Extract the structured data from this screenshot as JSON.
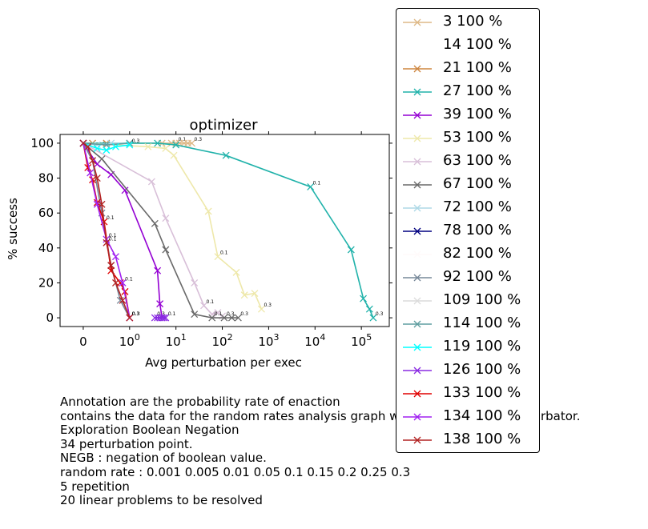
{
  "chart_data": {
    "type": "line",
    "title": "optimizer",
    "xlabel": "Avg perturbation per exec",
    "ylabel": "% success",
    "xscale": "symlog",
    "xlim": [
      -0.5,
      400000
    ],
    "ylim": [
      -5,
      105
    ],
    "x_tick_labels": [
      "0",
      "10^0",
      "10^1",
      "10^2",
      "10^3",
      "10^4",
      "10^5"
    ],
    "x_ticks": [
      0,
      1,
      10,
      100,
      1000,
      10000,
      100000
    ],
    "y_ticks": [
      0,
      20,
      40,
      60,
      80,
      100
    ],
    "y_tick_labels": [
      "0",
      "20",
      "40",
      "60",
      "80",
      "100"
    ],
    "marker": "x",
    "legend_position": "outside-right",
    "series": [
      {
        "name": "3 100 %",
        "color": "#deb887",
        "x": [
          0,
          5,
          8,
          10,
          12,
          15,
          18,
          22
        ],
        "y": [
          100,
          100,
          100,
          100,
          100,
          100,
          100,
          100
        ],
        "labels": [
          "",
          "",
          "",
          "0.1",
          "",
          "",
          "",
          "0.3"
        ]
      },
      {
        "name": "14 100 %",
        "color": "#ffffff",
        "x": [],
        "y": [],
        "labels": []
      },
      {
        "name": "21 100 %",
        "color": "#cd853f",
        "x": [
          0,
          0.2,
          0.5,
          1
        ],
        "y": [
          100,
          100,
          100,
          100
        ],
        "labels": [
          "",
          "",
          "",
          ""
        ]
      },
      {
        "name": "27 100 %",
        "color": "#20b2aa",
        "x": [
          0,
          4,
          10,
          120,
          8000,
          60000,
          110000,
          150000,
          180000
        ],
        "y": [
          100,
          100,
          99,
          93,
          75,
          39,
          11,
          5,
          0
        ],
        "labels": [
          "",
          "",
          "",
          "",
          "0.1",
          "",
          "",
          "",
          "0.3"
        ]
      },
      {
        "name": "39 100 %",
        "color": "#9400d3",
        "x": [
          0,
          0.3,
          0.6,
          0.9,
          4,
          4.5,
          5
        ],
        "y": [
          100,
          88,
          82,
          73,
          27,
          8,
          0
        ],
        "labels": [
          "",
          "",
          "",
          "",
          "",
          "",
          ""
        ]
      },
      {
        "name": "53 100 %",
        "color": "#eee8aa",
        "x": [
          0,
          2.5,
          6,
          9,
          50,
          80,
          200,
          300,
          500,
          700
        ],
        "y": [
          100,
          98,
          97,
          93,
          61,
          35,
          26,
          13,
          14,
          5
        ],
        "labels": [
          "",
          "",
          "",
          "",
          "",
          "0.1",
          "",
          "",
          "",
          "0.3"
        ]
      },
      {
        "name": "63 100 %",
        "color": "#d8bfd8",
        "x": [
          0,
          3,
          6,
          25,
          40,
          60,
          80,
          100
        ],
        "y": [
          100,
          78,
          57,
          20,
          7,
          2,
          3,
          1
        ],
        "labels": [
          "",
          "",
          "",
          "",
          "0.1",
          "",
          "",
          ""
        ]
      },
      {
        "name": "67 100 %",
        "color": "#696969",
        "x": [
          0,
          0.4,
          3.5,
          6,
          25,
          60,
          110,
          160,
          220
        ],
        "y": [
          100,
          91,
          54,
          39,
          2,
          0,
          0,
          0,
          0
        ],
        "labels": [
          "",
          "",
          "",
          "",
          "",
          "0.1",
          "0.3",
          "",
          "0.3"
        ]
      },
      {
        "name": "72 100 %",
        "color": "#add8e6",
        "x": [
          0,
          0.3,
          0.6,
          1
        ],
        "y": [
          100,
          99,
          100,
          100
        ],
        "labels": [
          "",
          "",
          "",
          ""
        ]
      },
      {
        "name": "78 100 %",
        "color": "#000080",
        "x": [],
        "y": [],
        "labels": []
      },
      {
        "name": "82 100 %",
        "color": "#fffafa",
        "x": [],
        "y": [],
        "labels": []
      },
      {
        "name": "92 100 %",
        "color": "#778899",
        "x": [
          0,
          0.2,
          0.4,
          0.6,
          0.8,
          1
        ],
        "y": [
          100,
          90,
          60,
          30,
          10,
          0
        ],
        "labels": [
          "",
          "",
          "",
          "",
          "",
          "0.3"
        ]
      },
      {
        "name": "109 100 %",
        "color": "#dcdcdc",
        "x": [],
        "y": [],
        "labels": []
      },
      {
        "name": "114 100 %",
        "color": "#5f9ea0",
        "x": [
          0,
          0.5,
          1
        ],
        "y": [
          100,
          99,
          100
        ],
        "labels": [
          "",
          "",
          ""
        ]
      },
      {
        "name": "119 100 %",
        "color": "#00ffff",
        "x": [
          0,
          0.3,
          0.5,
          0.7,
          1
        ],
        "y": [
          100,
          97,
          96,
          98,
          99
        ],
        "labels": [
          "",
          "",
          "",
          "",
          "0.3"
        ]
      },
      {
        "name": "126 100 %",
        "color": "#8a2be2",
        "x": [
          3.5,
          4,
          4.5,
          5,
          5.5,
          6
        ],
        "y": [
          0,
          0,
          0,
          0,
          0,
          0
        ],
        "labels": [
          "0.3",
          "",
          "",
          "",
          "",
          "0.1"
        ]
      },
      {
        "name": "133 100 %",
        "color": "#e00000",
        "x": [
          0,
          0.1,
          0.2,
          0.3,
          0.45,
          0.6,
          0.8,
          0.9,
          1
        ],
        "y": [
          100,
          86,
          79,
          66,
          55,
          27,
          20,
          15,
          0
        ],
        "labels": [
          "",
          "",
          "",
          "",
          "0.1",
          "",
          "",
          "",
          "0.3"
        ]
      },
      {
        "name": "134 100 %",
        "color": "#a020f0",
        "x": [
          0,
          0.15,
          0.3,
          0.5,
          0.7,
          0.85,
          1
        ],
        "y": [
          100,
          83,
          65,
          45,
          35,
          20,
          0
        ],
        "labels": [
          "",
          "",
          "",
          "0.1",
          "",
          "0.1",
          "0.3"
        ]
      },
      {
        "name": "138 100 %",
        "color": "#b22222",
        "x": [
          0,
          0.1,
          0.2,
          0.3,
          0.4,
          0.5,
          0.6,
          0.7,
          0.85,
          1
        ],
        "y": [
          100,
          98,
          90,
          80,
          65,
          43,
          30,
          20,
          10,
          0
        ],
        "labels": [
          "",
          "",
          "",
          "",
          "",
          "0.1",
          "",
          "",
          "",
          "0.3"
        ]
      }
    ]
  },
  "caption": {
    "lines": [
      "Annotation are the probability rate of enaction",
      "contains the data for the random rates analysis graph with Perturbator as perturbator.",
      "Exploration Boolean Negation",
      "34 perturbation point.",
      "NEGB : negation of boolean value.",
      "random rate : 0.001 0.005 0.01 0.05 0.1 0.15 0.2 0.25 0.3",
      "5 repetition",
      "20 linear problems to be resolved"
    ]
  }
}
